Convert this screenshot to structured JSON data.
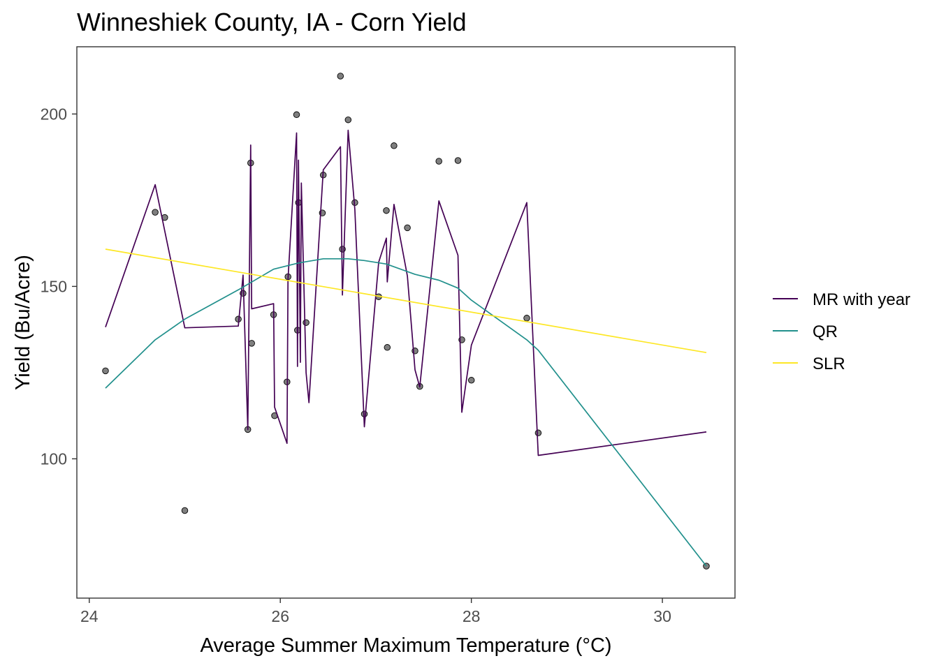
{
  "chart_data": {
    "type": "scatter",
    "title": "Winneshiek County, IA - Corn Yield",
    "xlabel": "Average Summer Maximum Temperature (°C)",
    "ylabel": "Yield (Bu/Acre)",
    "xlim": [
      23.87,
      30.76
    ],
    "ylim": [
      59.6,
      219.5
    ],
    "x_ticks": [
      24,
      26,
      28,
      30
    ],
    "y_ticks": [
      100,
      150,
      200
    ],
    "grid": false,
    "legend_position": "right",
    "points": [
      [
        24.17,
        125.5
      ],
      [
        24.69,
        171.5
      ],
      [
        24.79,
        170.0
      ],
      [
        25.0,
        85.0
      ],
      [
        25.56,
        140.5
      ],
      [
        25.61,
        148.0
      ],
      [
        25.66,
        108.5
      ],
      [
        25.69,
        185.8
      ],
      [
        25.7,
        133.5
      ],
      [
        25.93,
        141.8
      ],
      [
        25.94,
        112.5
      ],
      [
        26.07,
        122.3
      ],
      [
        26.08,
        152.8
      ],
      [
        26.17,
        199.8
      ],
      [
        26.18,
        137.3
      ],
      [
        26.19,
        174.3
      ],
      [
        26.27,
        139.5
      ],
      [
        26.44,
        171.3
      ],
      [
        26.45,
        182.3
      ],
      [
        26.63,
        211.0
      ],
      [
        26.65,
        160.8
      ],
      [
        26.71,
        198.3
      ],
      [
        26.78,
        174.3
      ],
      [
        26.88,
        113.0
      ],
      [
        27.03,
        147.0
      ],
      [
        27.11,
        172.0
      ],
      [
        27.12,
        132.3
      ],
      [
        27.19,
        190.8
      ],
      [
        27.33,
        167.0
      ],
      [
        27.41,
        131.3
      ],
      [
        27.46,
        121.0
      ],
      [
        27.66,
        186.3
      ],
      [
        27.86,
        186.5
      ],
      [
        27.9,
        134.5
      ],
      [
        28.0,
        122.8
      ],
      [
        28.58,
        140.8
      ],
      [
        28.7,
        107.5
      ],
      [
        30.46,
        68.9
      ]
    ],
    "series": [
      {
        "name": "MR with year",
        "color": "#440154",
        "points": [
          [
            24.17,
            138.2
          ],
          [
            24.69,
            179.5
          ],
          [
            25.0,
            138.0
          ],
          [
            25.56,
            138.5
          ],
          [
            25.61,
            153.3
          ],
          [
            25.66,
            108.5
          ],
          [
            25.69,
            191.0
          ],
          [
            25.7,
            143.5
          ],
          [
            25.93,
            145.0
          ],
          [
            25.94,
            115.0
          ],
          [
            26.07,
            104.5
          ],
          [
            26.08,
            152.0
          ],
          [
            26.17,
            194.5
          ],
          [
            26.18,
            126.8
          ],
          [
            26.19,
            186.6
          ],
          [
            26.21,
            128.0
          ],
          [
            26.22,
            180.0
          ],
          [
            26.27,
            125.0
          ],
          [
            26.3,
            116.3
          ],
          [
            26.45,
            183.8
          ],
          [
            26.63,
            190.5
          ],
          [
            26.65,
            147.5
          ],
          [
            26.71,
            195.3
          ],
          [
            26.78,
            172.3
          ],
          [
            26.88,
            109.3
          ],
          [
            27.03,
            157.0
          ],
          [
            27.11,
            164.0
          ],
          [
            27.12,
            151.3
          ],
          [
            27.19,
            173.8
          ],
          [
            27.33,
            153.0
          ],
          [
            27.41,
            125.8
          ],
          [
            27.46,
            120.8
          ],
          [
            27.66,
            174.8
          ],
          [
            27.86,
            159.0
          ],
          [
            27.9,
            113.5
          ],
          [
            28.0,
            133.0
          ],
          [
            28.58,
            174.3
          ],
          [
            28.7,
            101.0
          ],
          [
            30.46,
            107.8
          ]
        ]
      },
      {
        "name": "QR",
        "color": "#21908C",
        "points": [
          [
            24.17,
            120.5
          ],
          [
            24.69,
            134.5
          ],
          [
            25.0,
            140.5
          ],
          [
            25.56,
            149.0
          ],
          [
            25.93,
            155.0
          ],
          [
            26.19,
            156.8
          ],
          [
            26.45,
            158.0
          ],
          [
            26.71,
            158.0
          ],
          [
            26.88,
            157.5
          ],
          [
            27.11,
            156.5
          ],
          [
            27.41,
            153.5
          ],
          [
            27.66,
            151.8
          ],
          [
            27.86,
            149.5
          ],
          [
            28.0,
            146.0
          ],
          [
            28.58,
            134.5
          ],
          [
            28.7,
            131.5
          ],
          [
            30.46,
            68.9
          ]
        ]
      },
      {
        "name": "SLR",
        "color": "#FDE725",
        "points": [
          [
            24.17,
            160.8
          ],
          [
            30.46,
            130.8
          ]
        ]
      }
    ]
  }
}
